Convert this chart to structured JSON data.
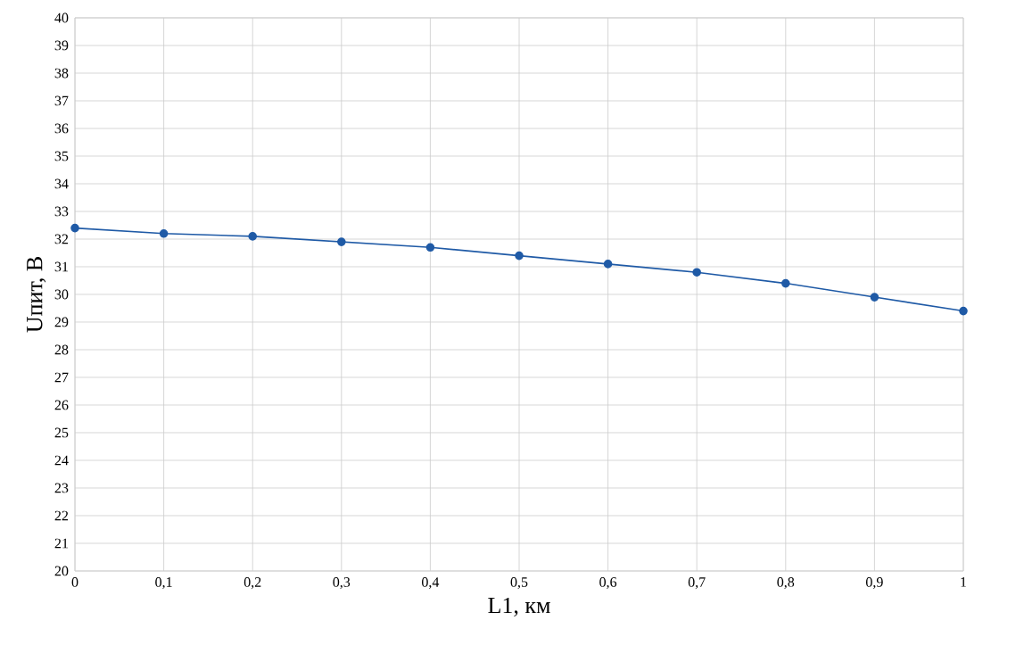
{
  "chart_data": {
    "type": "line",
    "xlabel": "L1, км",
    "ylabel": "Uпит, В",
    "x": [
      0,
      0.1,
      0.2,
      0.3,
      0.4,
      0.5,
      0.6,
      0.7,
      0.8,
      0.9,
      1
    ],
    "series": [
      {
        "color": "#1f5aa6",
        "values": [
          32.4,
          32.2,
          32.1,
          31.9,
          31.7,
          31.4,
          31.1,
          30.8,
          30.4,
          29.9,
          29.4
        ]
      }
    ],
    "xlim": [
      0,
      1
    ],
    "ylim": [
      20,
      40
    ],
    "xticks": [
      0,
      {
        "value": 0.1,
        "label": "0,1"
      },
      {
        "value": 0.2,
        "label": "0,2"
      },
      {
        "value": 0.3,
        "label": "0,3"
      },
      {
        "value": 0.4,
        "label": "0,4"
      },
      {
        "value": 0.5,
        "label": "0,5"
      },
      {
        "value": 0.6,
        "label": "0,6"
      },
      {
        "value": 0.7,
        "label": "0,7"
      },
      {
        "value": 0.8,
        "label": "0,8"
      },
      {
        "value": 0.9,
        "label": "0,9"
      },
      1
    ],
    "yticks": [
      20,
      21,
      22,
      23,
      24,
      25,
      26,
      27,
      28,
      29,
      30,
      31,
      32,
      33,
      34,
      35,
      36,
      37,
      38,
      39,
      40
    ],
    "grid": true,
    "marker": "circle",
    "line_style": "solid"
  }
}
